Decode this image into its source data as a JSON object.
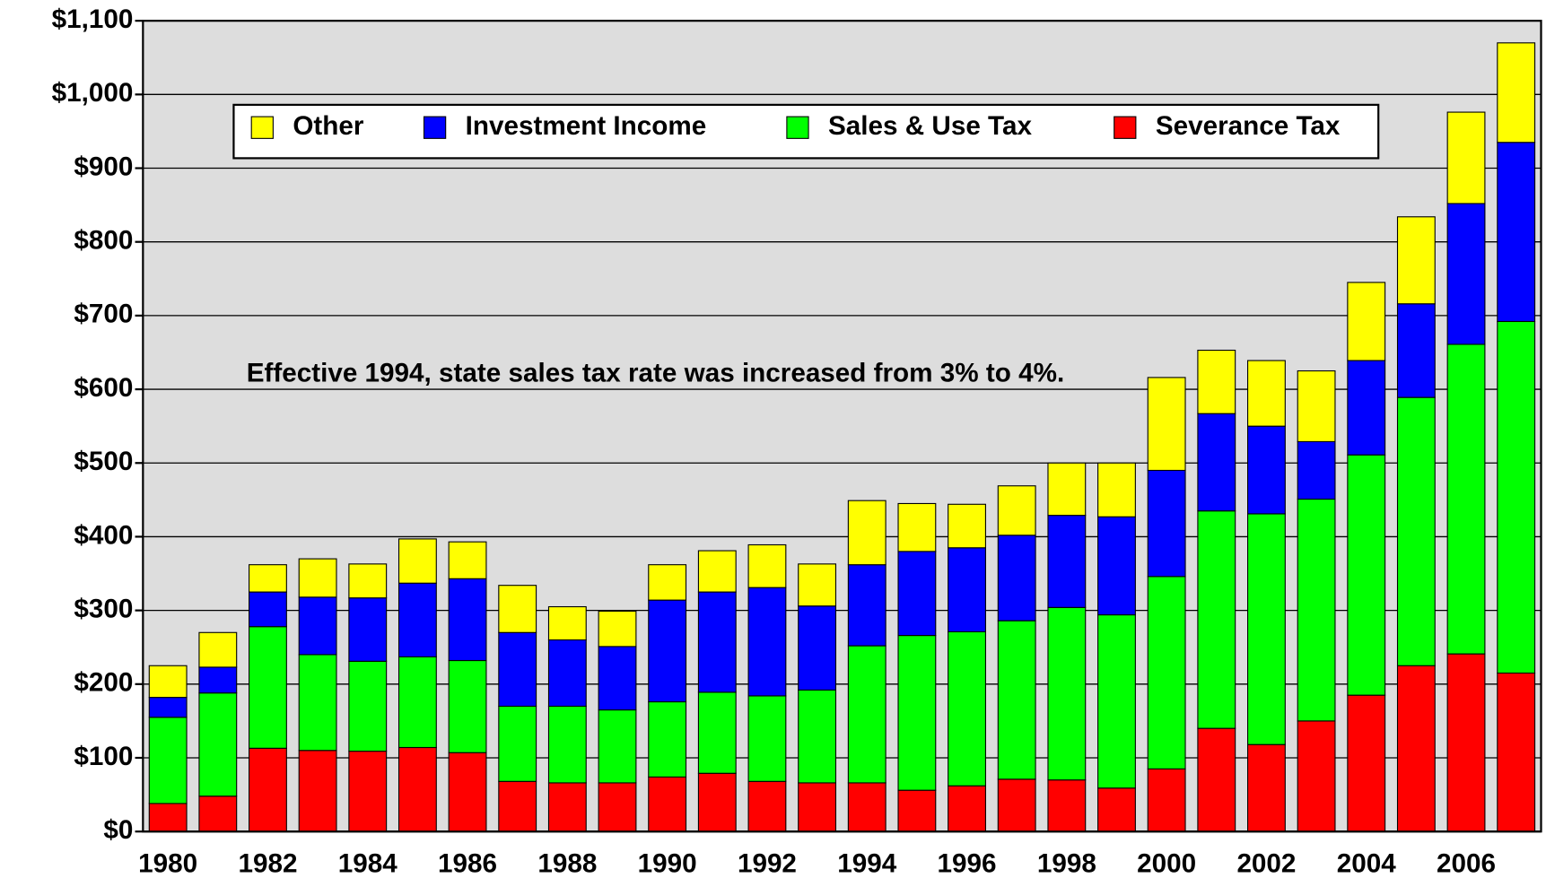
{
  "chart_data": {
    "type": "bar",
    "stacked": true,
    "annotation": "Effective 1994, state sales tax rate was increased from 3% to 4%.",
    "categories": [
      "1980",
      null,
      "1982",
      null,
      "1984",
      null,
      "1986",
      null,
      "1988",
      null,
      "1990",
      null,
      "1992",
      null,
      "1994",
      null,
      "1996",
      null,
      "1998",
      null,
      "2000",
      null,
      "2002",
      null,
      "2004",
      null,
      "2006",
      null
    ],
    "series": [
      {
        "name": "Other",
        "color": "#ffff00",
        "values": [
          43,
          47,
          37,
          52,
          46,
          60,
          50,
          64,
          45,
          48,
          48,
          56,
          58,
          57,
          87,
          65,
          59,
          67,
          71,
          73,
          126,
          86,
          89,
          96,
          106,
          118,
          124,
          135
        ]
      },
      {
        "name": "Investment Income",
        "color": "#0000ff",
        "values": [
          27,
          35,
          47,
          78,
          86,
          100,
          111,
          100,
          90,
          86,
          138,
          136,
          147,
          114,
          110,
          114,
          114,
          116,
          125,
          133,
          144,
          132,
          119,
          78,
          128,
          127,
          191,
          243
        ]
      },
      {
        "name": "Sales & Use Tax",
        "color": "#00ff00",
        "values": [
          117,
          140,
          165,
          130,
          122,
          123,
          125,
          102,
          104,
          99,
          102,
          110,
          116,
          126,
          186,
          210,
          209,
          215,
          234,
          235,
          261,
          295,
          313,
          301,
          326,
          364,
          420,
          477
        ]
      },
      {
        "name": "Severance Tax",
        "color": "#ff0000",
        "values": [
          38,
          48,
          113,
          110,
          109,
          114,
          107,
          68,
          66,
          66,
          74,
          79,
          68,
          66,
          66,
          56,
          62,
          71,
          70,
          59,
          85,
          140,
          118,
          150,
          185,
          225,
          241,
          215
        ]
      }
    ],
    "ylim": [
      0,
      1100
    ],
    "yticks": [
      {
        "value": 0,
        "label": "$0"
      },
      {
        "value": 100,
        "label": "$100"
      },
      {
        "value": 200,
        "label": "$200"
      },
      {
        "value": 300,
        "label": "$300"
      },
      {
        "value": 400,
        "label": "$400"
      },
      {
        "value": 500,
        "label": "$500"
      },
      {
        "value": 600,
        "label": "$600"
      },
      {
        "value": 700,
        "label": "$700"
      },
      {
        "value": 800,
        "label": "$800"
      },
      {
        "value": 900,
        "label": "$900"
      },
      {
        "value": 1000,
        "label": "$1,000"
      },
      {
        "value": 1100,
        "label": "$1,100"
      }
    ],
    "grid": true,
    "legend": "top"
  }
}
